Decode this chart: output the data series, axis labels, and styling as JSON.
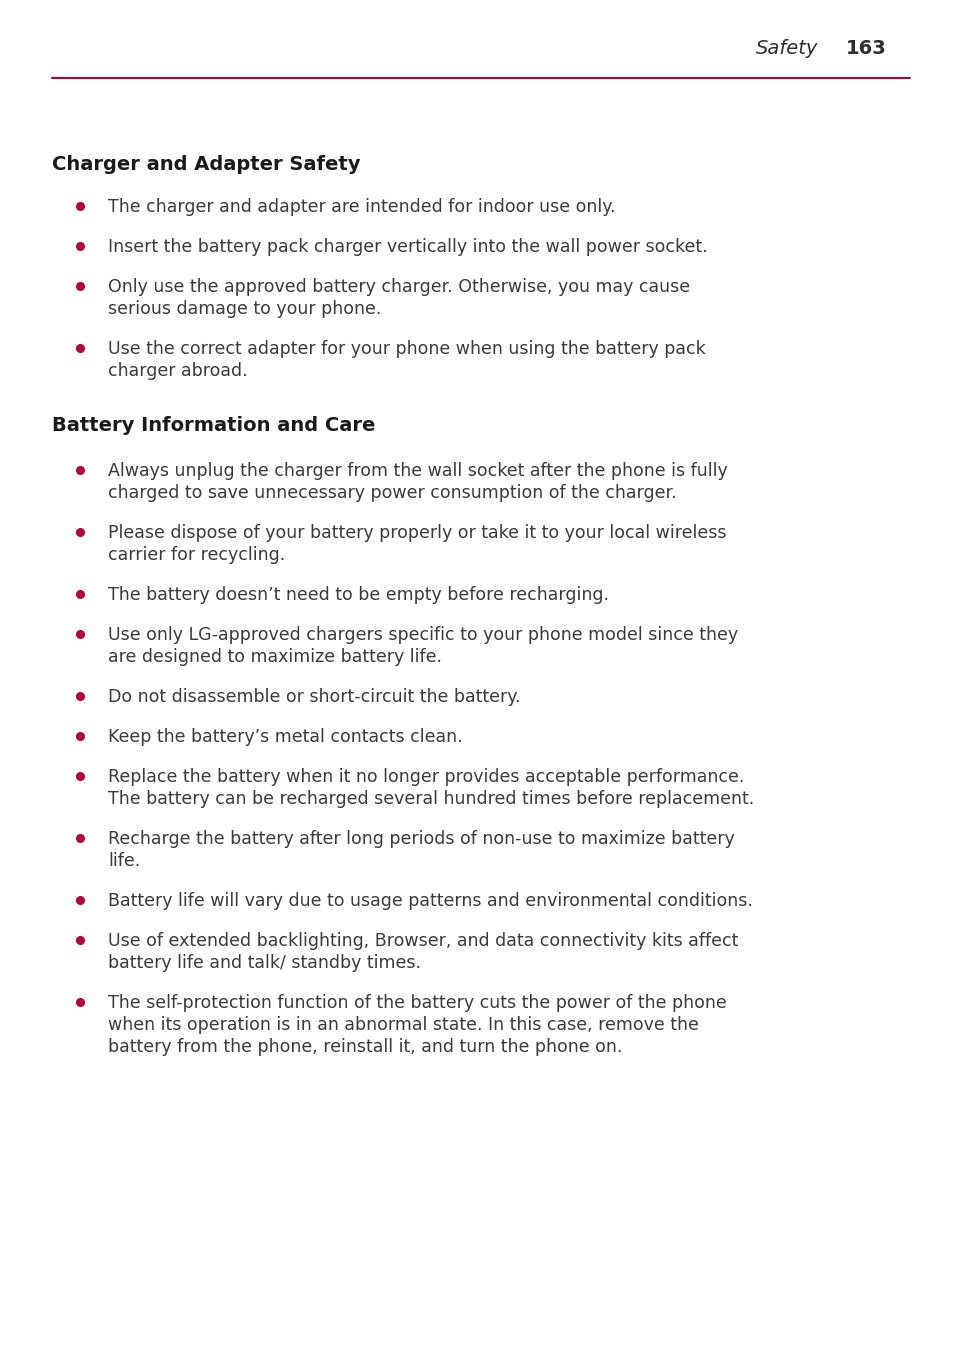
{
  "bg_color": "#ffffff",
  "header_text": "Safety",
  "header_page": "163",
  "header_color": "#2d2d2d",
  "header_line_color": "#b5003a",
  "section1_title": "Charger and Adapter Safety",
  "section2_title": "Battery Information and Care",
  "bullet_color": "#b5003a",
  "text_color": "#3a3a3a",
  "section_title_color": "#1a1a1a",
  "charger_bullets": [
    [
      "The charger and adapter are intended for indoor use only."
    ],
    [
      "Insert the battery pack charger vertically into the wall power socket."
    ],
    [
      "Only use the approved battery charger. Otherwise, you may cause",
      "serious damage to your phone."
    ],
    [
      "Use the correct adapter for your phone when using the battery pack",
      "charger abroad."
    ]
  ],
  "battery_bullets": [
    [
      "Always unplug the charger from the wall socket after the phone is fully",
      "charged to save unnecessary power consumption of the charger."
    ],
    [
      "Please dispose of your battery properly or take it to your local wireless",
      "carrier for recycling."
    ],
    [
      "The battery doesn’t need to be empty before recharging."
    ],
    [
      "Use only LG-approved chargers specific to your phone model since they",
      "are designed to maximize battery life."
    ],
    [
      "Do not disassemble or short-circuit the battery."
    ],
    [
      "Keep the battery’s metal contacts clean."
    ],
    [
      "Replace the battery when it no longer provides acceptable performance.",
      "The battery can be recharged several hundred times before replacement."
    ],
    [
      "Recharge the battery after long periods of non-use to maximize battery",
      "life."
    ],
    [
      "Battery life will vary due to usage patterns and environmental conditions."
    ],
    [
      "Use of extended backlighting, Browser, and data connectivity kits affect",
      "battery life and talk/ standby times."
    ],
    [
      "The self-protection function of the battery cuts the power of the phone",
      "when its operation is in an abnormal state. In this case, remove the",
      "battery from the phone, reinstall it, and turn the phone on."
    ]
  ]
}
